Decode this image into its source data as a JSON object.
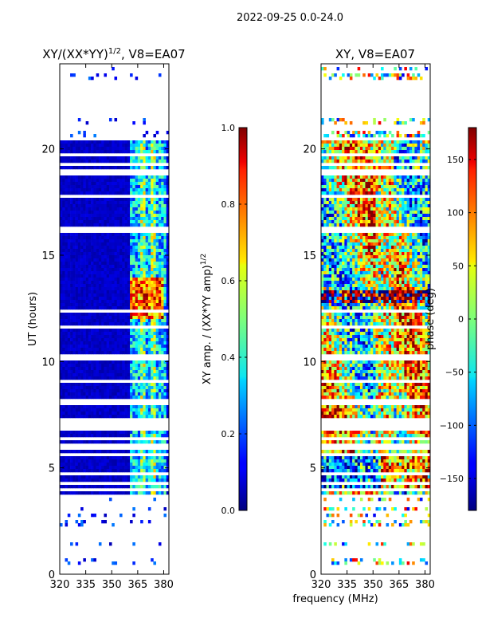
{
  "figure": {
    "suptitle": "2022-09-25 0.0-24.0",
    "shared_xlabel": "frequency (MHz)"
  },
  "chart_data": [
    {
      "type": "heatmap",
      "title_main": "XY/(XX*YY)",
      "title_exp": "1/2",
      "title_tail": ", V8=EA07",
      "xlabel": "",
      "ylabel": "UT (hours)",
      "xlim": [
        320,
        383
      ],
      "ylim": [
        0,
        24
      ],
      "xticks": [
        320,
        335,
        350,
        365,
        380
      ],
      "yticks": [
        0,
        5,
        10,
        15,
        20
      ],
      "colorbar": {
        "label_main": "XY amp. / (XX*YY amp)",
        "label_exp": "1/2",
        "range": [
          0.0,
          1.0
        ],
        "ticks": [
          "0.0",
          "0.2",
          "0.4",
          "0.6",
          "0.8",
          "1.0"
        ],
        "tick_values": [
          0.0,
          0.2,
          0.4,
          0.6,
          0.8,
          1.0
        ]
      },
      "gap_rows_hours": [
        0.3,
        0.9,
        1.2,
        1.55,
        1.8,
        2.1,
        2.6,
        2.9,
        3.3,
        3.7,
        4.0,
        4.3,
        4.7,
        5.6,
        6.0,
        6.4,
        6.9,
        7.2,
        8.1,
        9.1,
        10.2,
        11.6,
        12.4,
        16.1,
        16.3,
        17.8,
        18.9,
        19.3,
        19.7,
        20.5,
        21.0,
        21.5,
        22.2,
        23.1,
        23.6
      ]
    },
    {
      "type": "heatmap",
      "title": "XY, V8=EA07",
      "xlabel": "",
      "ylabel": "",
      "xlim": [
        320,
        383
      ],
      "ylim": [
        0,
        24
      ],
      "xticks": [
        320,
        335,
        350,
        365,
        380
      ],
      "yticks": [
        0,
        5,
        10,
        15,
        20
      ],
      "colorbar": {
        "label": "phase (deg)",
        "range": [
          -180,
          180
        ],
        "ticks": [
          "150",
          "100",
          "50",
          "0",
          "−50",
          "−100",
          "−150"
        ],
        "tick_values": [
          150,
          100,
          50,
          0,
          -50,
          -100,
          -150
        ]
      },
      "gap_rows_hours": [
        0.3,
        0.9,
        1.2,
        1.55,
        1.8,
        2.1,
        2.6,
        2.9,
        3.3,
        3.7,
        4.0,
        4.3,
        4.7,
        5.6,
        6.0,
        6.4,
        6.9,
        7.2,
        8.1,
        9.1,
        10.2,
        11.6,
        12.4,
        16.1,
        16.3,
        17.8,
        18.9,
        19.3,
        19.7,
        20.5,
        21.0,
        21.5,
        22.2,
        23.1,
        23.6
      ]
    }
  ]
}
